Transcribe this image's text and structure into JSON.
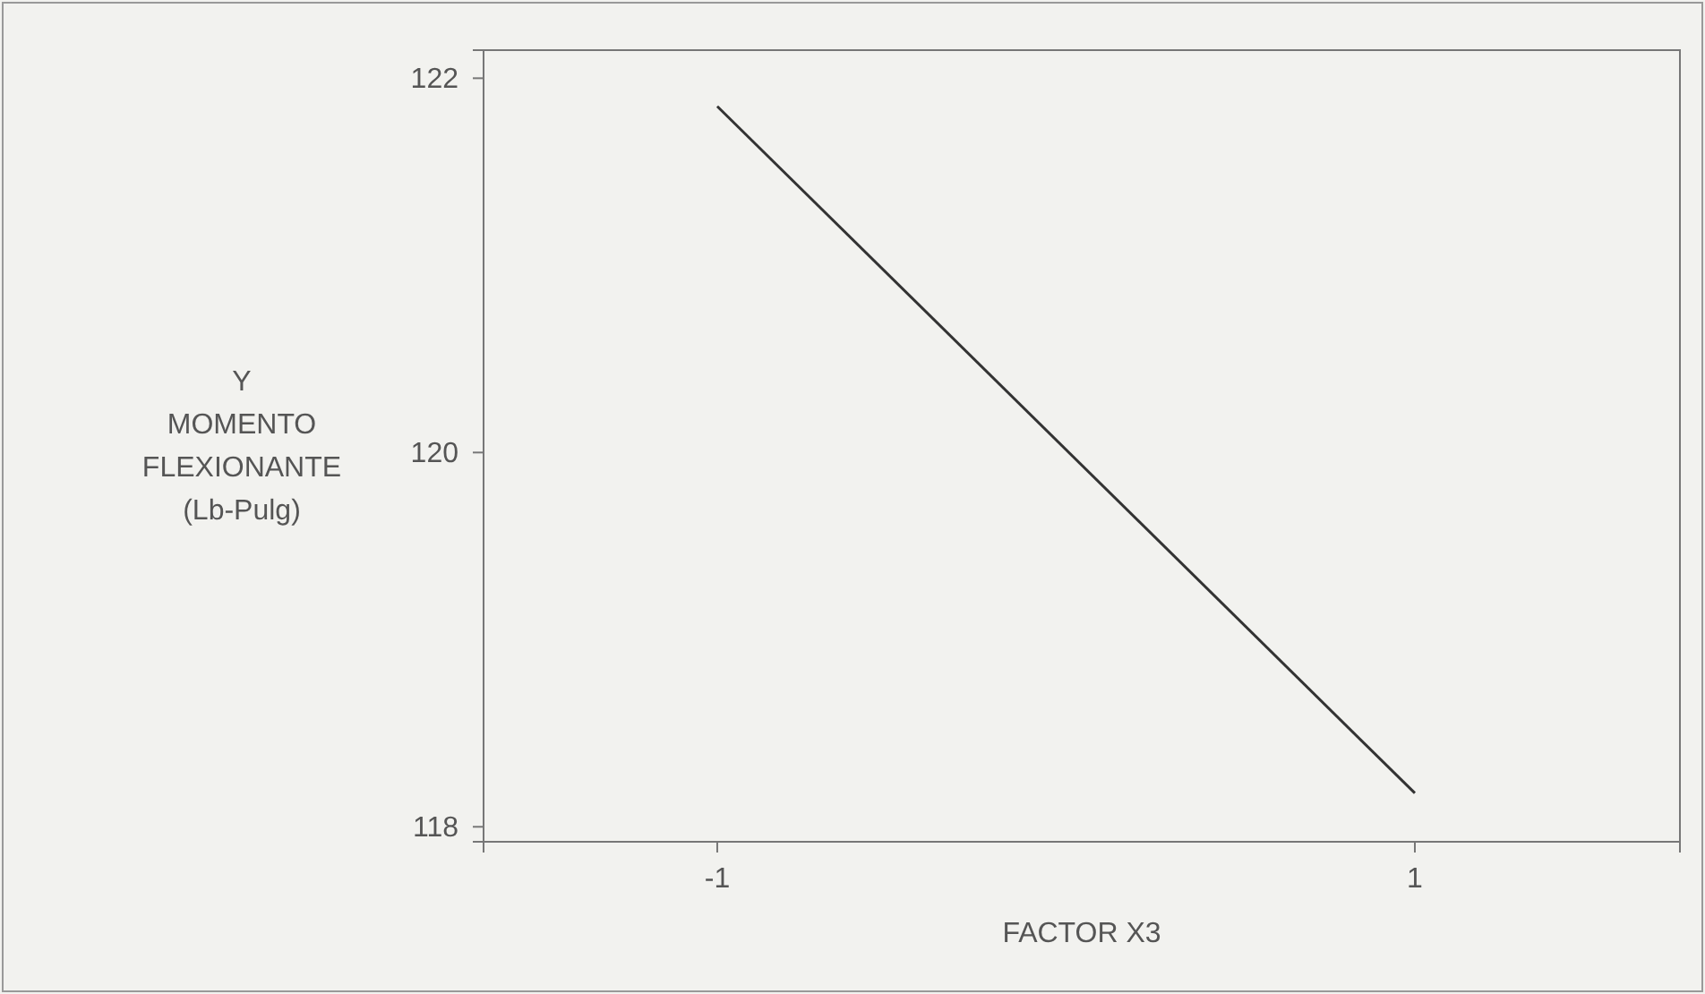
{
  "chart_data": {
    "type": "line",
    "xlabel": "FACTOR X3",
    "ylabel": "Y\nMOMENTO\nFLEXIONANTE\n(Lb-Pulg)",
    "x": [
      -1,
      1
    ],
    "series": [
      {
        "color": "#333333",
        "values": [
          121.85,
          118.18
        ]
      }
    ],
    "xlim": [
      -1.67,
      1.76
    ],
    "ylim": [
      117.92,
      122.15
    ],
    "xticks": [
      -1,
      1
    ],
    "yticks": [
      118,
      120,
      122
    ],
    "grid": false,
    "marker": "none",
    "line_style": "solid"
  }
}
